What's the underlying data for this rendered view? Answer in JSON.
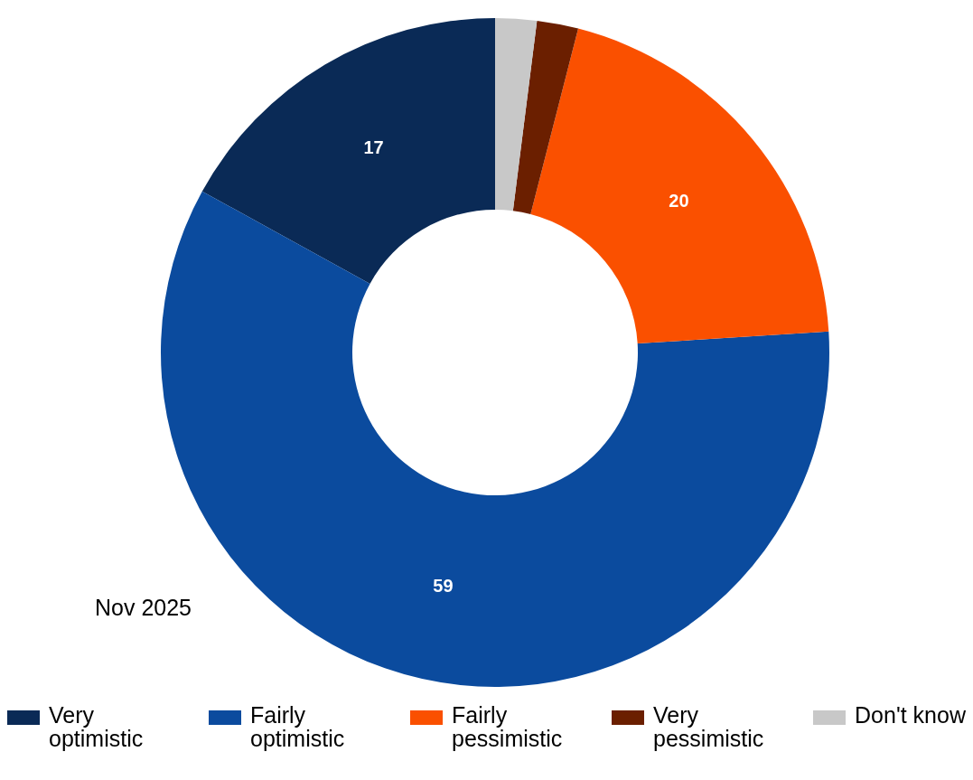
{
  "chart_data": {
    "type": "donut",
    "categories": [
      "Very optimistic",
      "Fairly optimistic",
      "Fairly pessimistic",
      "Very pessimistic",
      "Don't know"
    ],
    "values": [
      17,
      59,
      20,
      2,
      2
    ],
    "value_labels": [
      "17",
      "59",
      "20",
      null,
      null
    ],
    "colors": [
      "#0a2a56",
      "#0b4b9e",
      "#fa5000",
      "#6b1f00",
      "#c8c8c8"
    ],
    "annotations": [
      "Nov 2025"
    ],
    "legend": "bottom"
  }
}
